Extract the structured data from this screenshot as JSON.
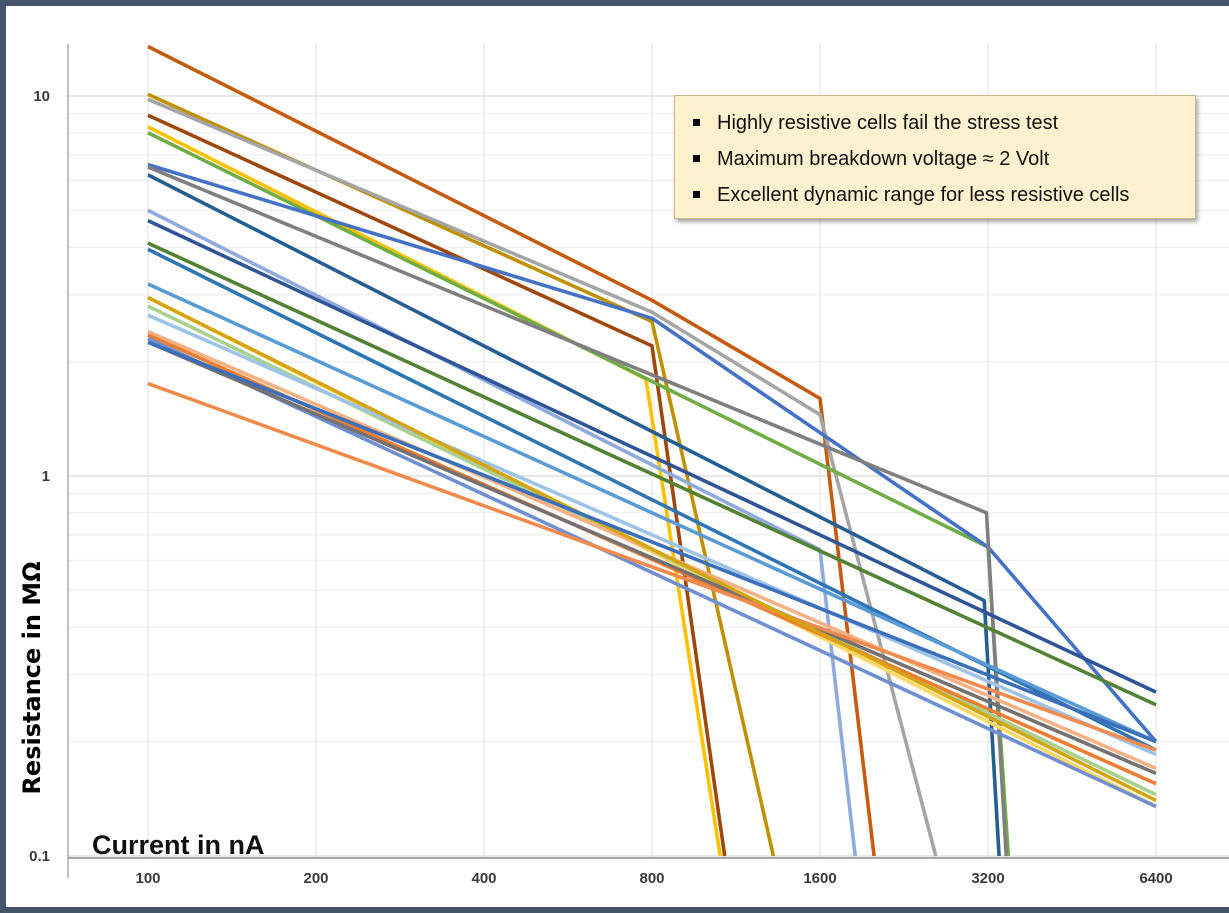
{
  "chart_data": {
    "type": "line",
    "title": "",
    "xlabel": "Current in nA",
    "ylabel": "Resistance in MΩ",
    "x_scale": "log2",
    "y_scale": "log10",
    "x_ticks": [
      "100",
      "200",
      "400",
      "800",
      "1600",
      "3200",
      "6400"
    ],
    "y_ticks": [
      "0.1",
      "1",
      "10"
    ],
    "xlim": [
      100,
      6400
    ],
    "ylim": [
      0.1,
      12
    ],
    "grid": true,
    "legend": "none",
    "annotations": [
      "Highly resistive cells fail the stress test",
      "Maximum breakdown voltage ≈ 2 Volt",
      "Excellent dynamic range for less resistive cells"
    ],
    "series": [
      {
        "color": "#c55a11",
        "x": [
          100,
          800,
          1600,
          2000
        ],
        "y": [
          13.5,
          2.9,
          1.6,
          0.1
        ]
      },
      {
        "color": "#bf9000",
        "x": [
          100,
          800,
          1320
        ],
        "y": [
          10.1,
          2.55,
          0.1
        ]
      },
      {
        "color": "#a5a5a5",
        "x": [
          100,
          800,
          1600,
          2580
        ],
        "y": [
          9.8,
          2.7,
          1.45,
          0.1
        ]
      },
      {
        "color": "#9e480e",
        "x": [
          100,
          800,
          1080
        ],
        "y": [
          8.9,
          2.2,
          0.1
        ]
      },
      {
        "color": "#ffc000",
        "x": [
          100,
          780,
          1060
        ],
        "y": [
          8.3,
          1.8,
          0.1
        ]
      },
      {
        "color": "#70ad47",
        "x": [
          100,
          3200,
          3480
        ],
        "y": [
          8.0,
          0.65,
          0.1
        ]
      },
      {
        "color": "#4472c4",
        "x": [
          100,
          800,
          3200,
          6400
        ],
        "y": [
          6.6,
          2.6,
          0.65,
          0.2
        ]
      },
      {
        "color": "#7f7f7f",
        "x": [
          100,
          3180,
          3450
        ],
        "y": [
          6.5,
          0.8,
          0.1
        ]
      },
      {
        "color": "#255e91",
        "x": [
          100,
          3150,
          3350
        ],
        "y": [
          6.2,
          0.47,
          0.1
        ]
      },
      {
        "color": "#8faadc",
        "x": [
          100,
          1600,
          1850
        ],
        "y": [
          5.0,
          0.64,
          0.1
        ]
      },
      {
        "color": "#2f5597",
        "x": [
          100,
          6400
        ],
        "y": [
          4.7,
          0.27
        ]
      },
      {
        "color": "#548235",
        "x": [
          100,
          6400
        ],
        "y": [
          4.1,
          0.25
        ]
      },
      {
        "color": "#2e75b6",
        "x": [
          100,
          6400
        ],
        "y": [
          3.95,
          0.19
        ]
      },
      {
        "color": "#5b9bd5",
        "x": [
          100,
          6400
        ],
        "y": [
          3.2,
          0.2
        ]
      },
      {
        "color": "#ffd966",
        "x": [
          100,
          6400
        ],
        "y": [
          2.95,
          0.135
        ]
      },
      {
        "color": "#a9d18e",
        "x": [
          100,
          6400
        ],
        "y": [
          2.8,
          0.145
        ]
      },
      {
        "color": "#9dc3e6",
        "x": [
          100,
          6400
        ],
        "y": [
          2.65,
          0.185
        ]
      },
      {
        "color": "#f4b183",
        "x": [
          100,
          6400
        ],
        "y": [
          2.4,
          0.17
        ]
      },
      {
        "color": "#ed7d31",
        "x": [
          100,
          6400
        ],
        "y": [
          2.35,
          0.155
        ]
      },
      {
        "color": "#6f8fd0",
        "x": [
          100,
          6400
        ],
        "y": [
          2.3,
          0.135
        ]
      },
      {
        "color": "#767171",
        "x": [
          100,
          6400
        ],
        "y": [
          2.25,
          0.165
        ]
      },
      {
        "color": "#f08b4d",
        "x": [
          100,
          6400
        ],
        "y": [
          1.75,
          0.19
        ]
      },
      {
        "color": "#d6a40f",
        "x": [
          100,
          6400
        ],
        "y": [
          2.95,
          0.14
        ]
      },
      {
        "color": "#3c6fba",
        "x": [
          100,
          6400
        ],
        "y": [
          2.25,
          0.2
        ]
      }
    ]
  }
}
